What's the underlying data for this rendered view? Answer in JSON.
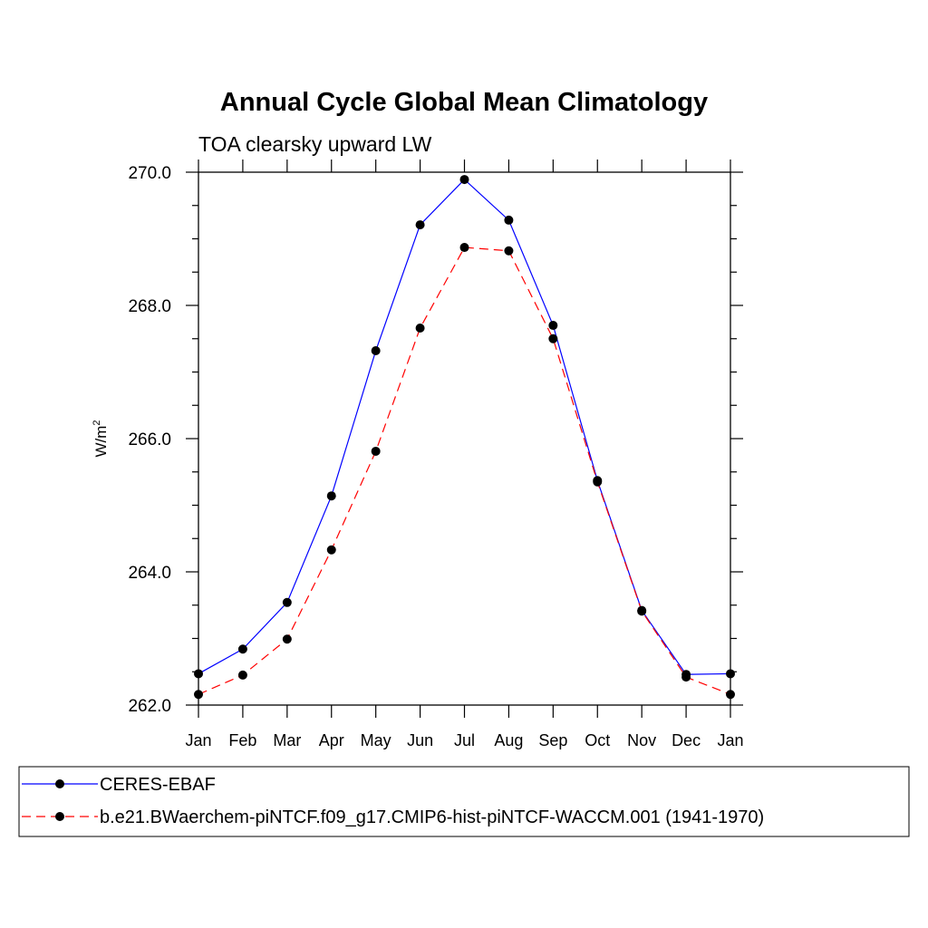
{
  "chart_data": {
    "type": "line",
    "title": "Annual Cycle Global Mean Climatology",
    "subtitle": "TOA clearsky upward LW",
    "xlabel": "",
    "ylabel": "W/m",
    "ylabel_superscript": "2",
    "ylim": [
      262.0,
      270.0
    ],
    "y_ticks": [
      "262.0",
      "264.0",
      "266.0",
      "268.0",
      "270.0"
    ],
    "categories": [
      "Jan",
      "Feb",
      "Mar",
      "Apr",
      "May",
      "Jun",
      "Jul",
      "Aug",
      "Sep",
      "Oct",
      "Nov",
      "Dec",
      "Jan"
    ],
    "series": [
      {
        "name": "CERES-EBAF",
        "color": "#0000ff",
        "dash": "solid",
        "values": [
          262.47,
          262.84,
          263.54,
          265.14,
          267.32,
          269.21,
          269.89,
          269.28,
          267.7,
          265.37,
          263.42,
          262.46,
          262.47
        ]
      },
      {
        "name": "b.e21.BWaerchem-piNTCF.f09_g17.CMIP6-hist-piNTCF-WACCM.001 (1941-1970)",
        "color": "#ff0000",
        "dash": "dashed",
        "values": [
          262.16,
          262.45,
          262.99,
          264.33,
          265.81,
          267.66,
          268.87,
          268.82,
          267.5,
          265.35,
          263.41,
          262.42,
          262.16
        ]
      }
    ],
    "legend_position": "bottom"
  }
}
